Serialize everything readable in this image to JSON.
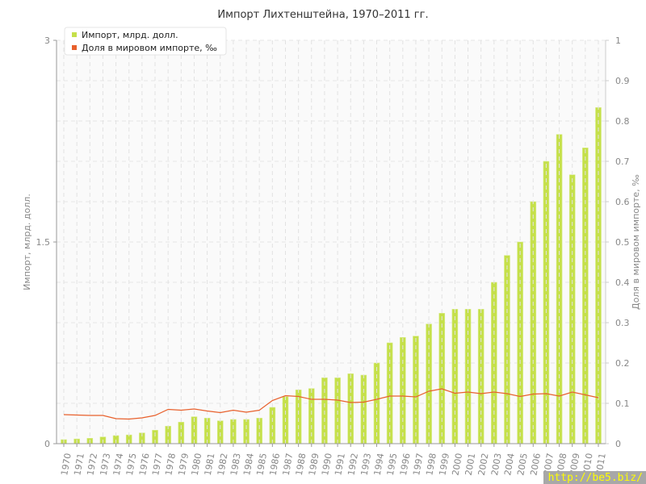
{
  "chart_data": {
    "type": "bar",
    "title": "Импорт Лихтенштейна, 1970–2011 гг.",
    "ylabel": "Импорт, млрд. долл.",
    "y2label": "Доля в мировом импорте, ‰",
    "ylim": [
      0,
      3
    ],
    "y2lim": [
      0,
      1
    ],
    "yticks": [
      "0",
      "1.5",
      "3"
    ],
    "y2ticks": [
      "0",
      "0.1",
      "0.2",
      "0.3",
      "0.4",
      "0.5",
      "0.6",
      "0.7",
      "0.8",
      "0.9",
      "1"
    ],
    "grid": true,
    "legend_position": "top-left",
    "categories": [
      "1970",
      "1971",
      "1972",
      "1973",
      "1974",
      "1975",
      "1976",
      "1977",
      "1978",
      "1979",
      "1980",
      "1981",
      "1982",
      "1983",
      "1984",
      "1985",
      "1986",
      "1987",
      "1988",
      "1989",
      "1990",
      "1991",
      "1992",
      "1993",
      "1994",
      "1995",
      "1996",
      "1997",
      "1998",
      "1999",
      "2000",
      "2001",
      "2002",
      "2003",
      "2004",
      "2005",
      "2006",
      "2007",
      "2008",
      "2009",
      "2010",
      "2011"
    ],
    "series": [
      {
        "name": "Импорт, млрд. долл.",
        "type": "bar",
        "axis": "left",
        "color": "#c5e04a",
        "values": [
          0.03,
          0.035,
          0.04,
          0.05,
          0.06,
          0.065,
          0.08,
          0.1,
          0.13,
          0.16,
          0.2,
          0.19,
          0.17,
          0.18,
          0.18,
          0.19,
          0.27,
          0.35,
          0.4,
          0.41,
          0.49,
          0.49,
          0.52,
          0.51,
          0.6,
          0.75,
          0.79,
          0.8,
          0.89,
          0.97,
          1.0,
          1.0,
          1.0,
          1.2,
          1.4,
          1.5,
          1.8,
          2.1,
          2.3,
          2.0,
          2.2,
          2.5
        ]
      },
      {
        "name": "Доля в мировом импорте, ‰",
        "type": "line",
        "axis": "right",
        "color": "#e8602c",
        "values": [
          0.072,
          0.071,
          0.07,
          0.07,
          0.062,
          0.061,
          0.064,
          0.07,
          0.085,
          0.083,
          0.086,
          0.081,
          0.077,
          0.083,
          0.078,
          0.083,
          0.107,
          0.119,
          0.117,
          0.11,
          0.11,
          0.108,
          0.102,
          0.103,
          0.11,
          0.118,
          0.118,
          0.116,
          0.13,
          0.136,
          0.125,
          0.128,
          0.124,
          0.128,
          0.124,
          0.117,
          0.123,
          0.124,
          0.118,
          0.128,
          0.121,
          0.114
        ]
      }
    ]
  },
  "watermark": "http://be5.biz/"
}
